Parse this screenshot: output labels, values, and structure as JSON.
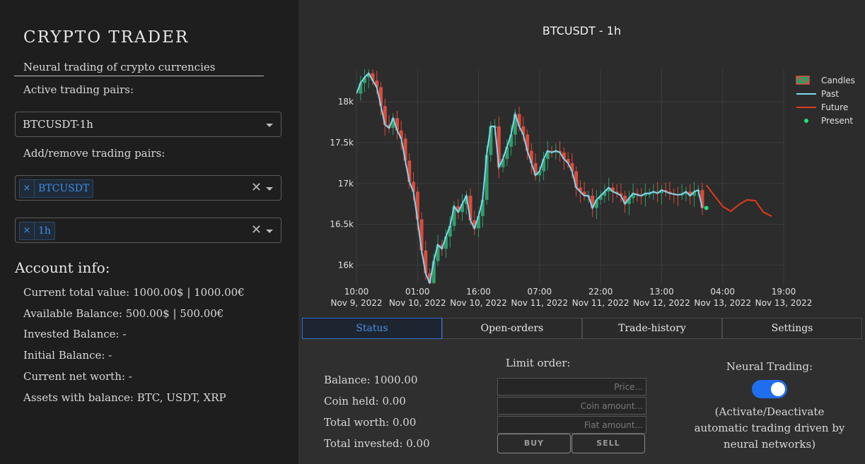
{
  "app": {
    "title": "CRYPTO TRADER",
    "subtitle": "Neural trading of crypto currencies"
  },
  "sidebar": {
    "active_pairs_label": "Active trading pairs:",
    "active_pair_value": "BTCUSDT-1h",
    "add_remove_label": "Add/remove trading pairs:",
    "pair_tags": [
      "BTCUSDT"
    ],
    "interval_tags": [
      "1h"
    ],
    "tag_remove_glyph": "×",
    "clear_glyph": "✕"
  },
  "account": {
    "heading": "Account info:",
    "lines": [
      "Current total value: 1000.00$ | 1000.00€",
      "Available Balance: 500.00$ | 500.00€",
      "Invested Balance: -",
      "Initial Balance: -",
      "Current net worth: -",
      "Assets with balance: BTC, USDT, XRP"
    ]
  },
  "chart_data": {
    "type": "line",
    "title": "BTCUSDT - 1h",
    "xlabel": "",
    "ylabel": "",
    "y_ticks": [
      "16k",
      "16.5k",
      "17k",
      "17.5k",
      "18k"
    ],
    "y_tick_values": [
      16000,
      16500,
      17000,
      17500,
      18000
    ],
    "ylim": [
      15770,
      18400
    ],
    "x_ticks": [
      {
        "time": "10:00",
        "date": "Nov 9, 2022"
      },
      {
        "time": "01:00",
        "date": "Nov 10, 2022"
      },
      {
        "time": "16:00",
        "date": "Nov 10, 2022"
      },
      {
        "time": "07:00",
        "date": "Nov 11, 2022"
      },
      {
        "time": "22:00",
        "date": "Nov 11, 2022"
      },
      {
        "time": "13:00",
        "date": "Nov 12, 2022"
      },
      {
        "time": "04:00",
        "date": "Nov 13, 2022"
      },
      {
        "time": "19:00",
        "date": "Nov 13, 2022"
      }
    ],
    "x_unit": "hours since Nov 9, 2022 10:00",
    "xlim": [
      0,
      105
    ],
    "legend": [
      {
        "name": "Candles",
        "kind": "candle"
      },
      {
        "name": "Past",
        "kind": "line",
        "color": "#7fd6f0"
      },
      {
        "name": "Future",
        "kind": "line",
        "color": "#e03a1a"
      },
      {
        "name": "Present",
        "kind": "dot",
        "color": "#22e07a"
      }
    ],
    "legend_position": "top-right",
    "grid": true,
    "colors": {
      "up": "#2e9e6a",
      "down": "#e04a3a",
      "past": "#7fd6f0",
      "future": "#e03a1a",
      "present": "#22e07a"
    },
    "past": [
      [
        0,
        18100
      ],
      [
        1,
        18230
      ],
      [
        2,
        18300
      ],
      [
        3,
        18350
      ],
      [
        4,
        18260
      ],
      [
        5,
        18180
      ],
      [
        6,
        17950
      ],
      [
        7,
        17720
      ],
      [
        8,
        17680
      ],
      [
        9,
        17800
      ],
      [
        10,
        17650
      ],
      [
        11,
        17550
      ],
      [
        12,
        17280
      ],
      [
        13,
        17020
      ],
      [
        14,
        16900
      ],
      [
        15,
        16560
      ],
      [
        16,
        16180
      ],
      [
        17,
        15900
      ],
      [
        18,
        15780
      ],
      [
        19,
        16050
      ],
      [
        20,
        16250
      ],
      [
        21,
        16200
      ],
      [
        22,
        16350
      ],
      [
        23,
        16480
      ],
      [
        24,
        16720
      ],
      [
        25,
        16650
      ],
      [
        26,
        16750
      ],
      [
        27,
        16850
      ],
      [
        28,
        16550
      ],
      [
        29,
        16450
      ],
      [
        30,
        16600
      ],
      [
        31,
        16800
      ],
      [
        32,
        17350
      ],
      [
        33,
        17700
      ],
      [
        34,
        17700
      ],
      [
        35,
        17200
      ],
      [
        36,
        17300
      ],
      [
        37,
        17450
      ],
      [
        38,
        17600
      ],
      [
        39,
        17850
      ],
      [
        40,
        17700
      ],
      [
        41,
        17600
      ],
      [
        42,
        17400
      ],
      [
        43,
        17250
      ],
      [
        44,
        17100
      ],
      [
        45,
        17150
      ],
      [
        46,
        17300
      ],
      [
        47,
        17400
      ],
      [
        48,
        17380
      ],
      [
        49,
        17400
      ],
      [
        50,
        17380
      ],
      [
        51,
        17300
      ],
      [
        52,
        17250
      ],
      [
        53,
        17150
      ],
      [
        54,
        16950
      ],
      [
        55,
        16900
      ],
      [
        56,
        16850
      ],
      [
        57,
        16850
      ],
      [
        58,
        16700
      ],
      [
        59,
        16800
      ],
      [
        60,
        16850
      ],
      [
        61,
        16900
      ],
      [
        62,
        16950
      ],
      [
        63,
        16900
      ],
      [
        64,
        16880
      ],
      [
        65,
        16850
      ],
      [
        66,
        16750
      ],
      [
        67,
        16820
      ],
      [
        68,
        16880
      ],
      [
        69,
        16860
      ],
      [
        70,
        16850
      ],
      [
        71,
        16880
      ],
      [
        72,
        16880
      ],
      [
        73,
        16900
      ],
      [
        74,
        16880
      ],
      [
        75,
        16920
      ],
      [
        76,
        16900
      ],
      [
        77,
        16880
      ],
      [
        78,
        16870
      ],
      [
        79,
        16860
      ],
      [
        80,
        16870
      ],
      [
        81,
        16900
      ],
      [
        82,
        16850
      ],
      [
        83,
        16900
      ],
      [
        84,
        16920
      ],
      [
        85,
        16700
      ]
    ],
    "future": [
      [
        86,
        16980
      ],
      [
        88,
        16850
      ],
      [
        90,
        16720
      ],
      [
        92,
        16660
      ],
      [
        94,
        16740
      ],
      [
        96,
        16800
      ],
      [
        98,
        16790
      ],
      [
        100,
        16650
      ],
      [
        102,
        16600
      ]
    ],
    "present": [
      86,
      16700
    ]
  },
  "tabs": [
    {
      "label": "Status",
      "active": true
    },
    {
      "label": "Open-orders",
      "active": false
    },
    {
      "label": "Trade-history",
      "active": false
    },
    {
      "label": "Settings",
      "active": false
    }
  ],
  "status": {
    "balance": "Balance: 1000.00",
    "coin_held": "Coin held: 0.00",
    "total_worth": "Total worth: 0.00",
    "total_invested": "Total invested: 0.00"
  },
  "limit_order": {
    "label": "Limit order:",
    "price_placeholder": "Price...",
    "coin_placeholder": "Coin amount...",
    "fiat_placeholder": "Fiat amount...",
    "buy_label": "BUY",
    "sell_label": "SELL"
  },
  "neural": {
    "label": "Neural Trading:",
    "enabled": true,
    "description": "(Activate/Deactivate automatic trading driven by neural networks)"
  }
}
